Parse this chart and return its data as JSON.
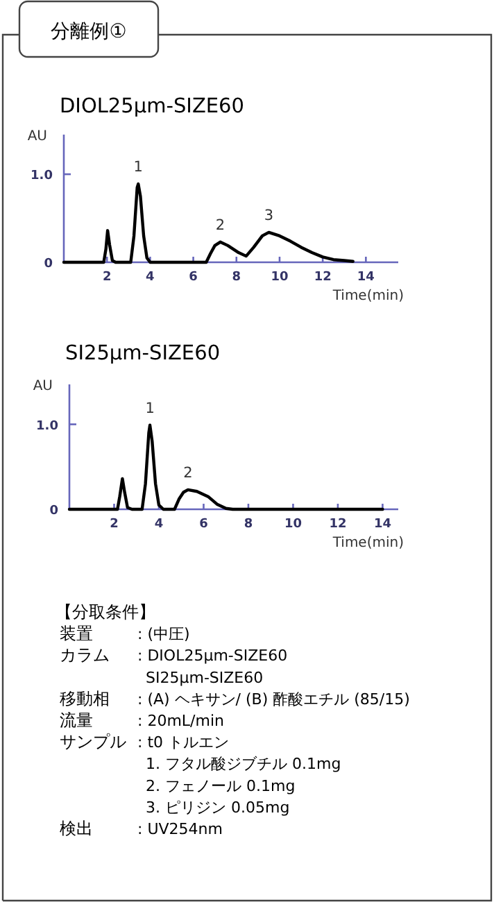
{
  "chart_data": [
    {
      "type": "other",
      "title": "分離例①"
    },
    {
      "type": "line",
      "title": "DIOL25μm-SIZE60",
      "xlabel": "Time(min)",
      "ylabel": "AU",
      "xlim": [
        0,
        15.5
      ],
      "ylim": [
        0,
        1.45
      ],
      "xticks": [
        2,
        4,
        6,
        8,
        10,
        12,
        14
      ],
      "yticks": [
        0,
        {
          "value": 1,
          "label": "1.0"
        }
      ],
      "series": [
        {
          "color": "#000000",
          "x": [
            0,
            1.85,
            1.95,
            2.03,
            2.12,
            2.25,
            2.4,
            3.1,
            3.25,
            3.4,
            3.45,
            3.55,
            3.7,
            3.85,
            4.0,
            6.6,
            6.8,
            7.0,
            7.25,
            7.6,
            8.1,
            8.45,
            8.8,
            9.2,
            9.5,
            10.0,
            10.5,
            11,
            11.5,
            12,
            12.5,
            13.0,
            13.4
          ],
          "values": [
            0,
            0,
            0.15,
            0.36,
            0.2,
            0.02,
            0,
            0,
            0.3,
            0.85,
            0.89,
            0.75,
            0.3,
            0.05,
            0,
            0,
            0.1,
            0.19,
            0.23,
            0.19,
            0.11,
            0.07,
            0.17,
            0.3,
            0.34,
            0.3,
            0.24,
            0.17,
            0.11,
            0.06,
            0.03,
            0.02,
            0.01
          ]
        }
      ],
      "annotations": [
        {
          "text": "1",
          "x": 3.45,
          "y": 0.89
        },
        {
          "text": "2",
          "x": 7.25,
          "y": 0.23
        },
        {
          "text": "3",
          "x": 9.5,
          "y": 0.34
        }
      ]
    },
    {
      "type": "line",
      "title": "SI25μm-SIZE60",
      "xlabel": "Time(min)",
      "ylabel": "AU",
      "xlim": [
        0,
        14.7
      ],
      "ylim": [
        0,
        1.47
      ],
      "xticks": [
        2,
        4,
        6,
        8,
        10,
        12,
        14
      ],
      "yticks": [
        0,
        {
          "value": 1,
          "label": "1.0"
        }
      ],
      "series": [
        {
          "color": "#000000",
          "x": [
            0,
            2.15,
            2.25,
            2.37,
            2.47,
            2.6,
            2.8,
            3.25,
            3.4,
            3.55,
            3.6,
            3.7,
            3.85,
            4.0,
            4.2,
            4.7,
            4.9,
            5.1,
            5.3,
            5.7,
            6.2,
            6.6,
            7.0,
            7.3,
            14
          ],
          "values": [
            0,
            0,
            0.15,
            0.36,
            0.2,
            0.02,
            0,
            0,
            0.3,
            0.9,
            0.99,
            0.8,
            0.3,
            0.05,
            0,
            0,
            0.12,
            0.2,
            0.23,
            0.21,
            0.15,
            0.06,
            0.01,
            0,
            0
          ]
        }
      ],
      "annotations": [
        {
          "text": "1",
          "x": 3.6,
          "y": 0.99
        },
        {
          "text": "2",
          "x": 5.3,
          "y": 0.23
        }
      ]
    },
    {
      "type": "other",
      "title": "【分取条件】",
      "annotations": [
        "装置 : (中圧)",
        "カラム : DIOL25μm-SIZE60",
        "SI25μm-SIZE60",
        "移動相 : (A) ヘキサン/ (B) 酢酸エチル (85/15)",
        "流量 : 20mL/min",
        "サンプル : t0 トルエン",
        "1. フタル酸ジブチル 0.1mg",
        "2. フェノール 0.1mg",
        "3. ピリジン 0.05mg",
        "検出 : UV254nm"
      ]
    }
  ]
}
